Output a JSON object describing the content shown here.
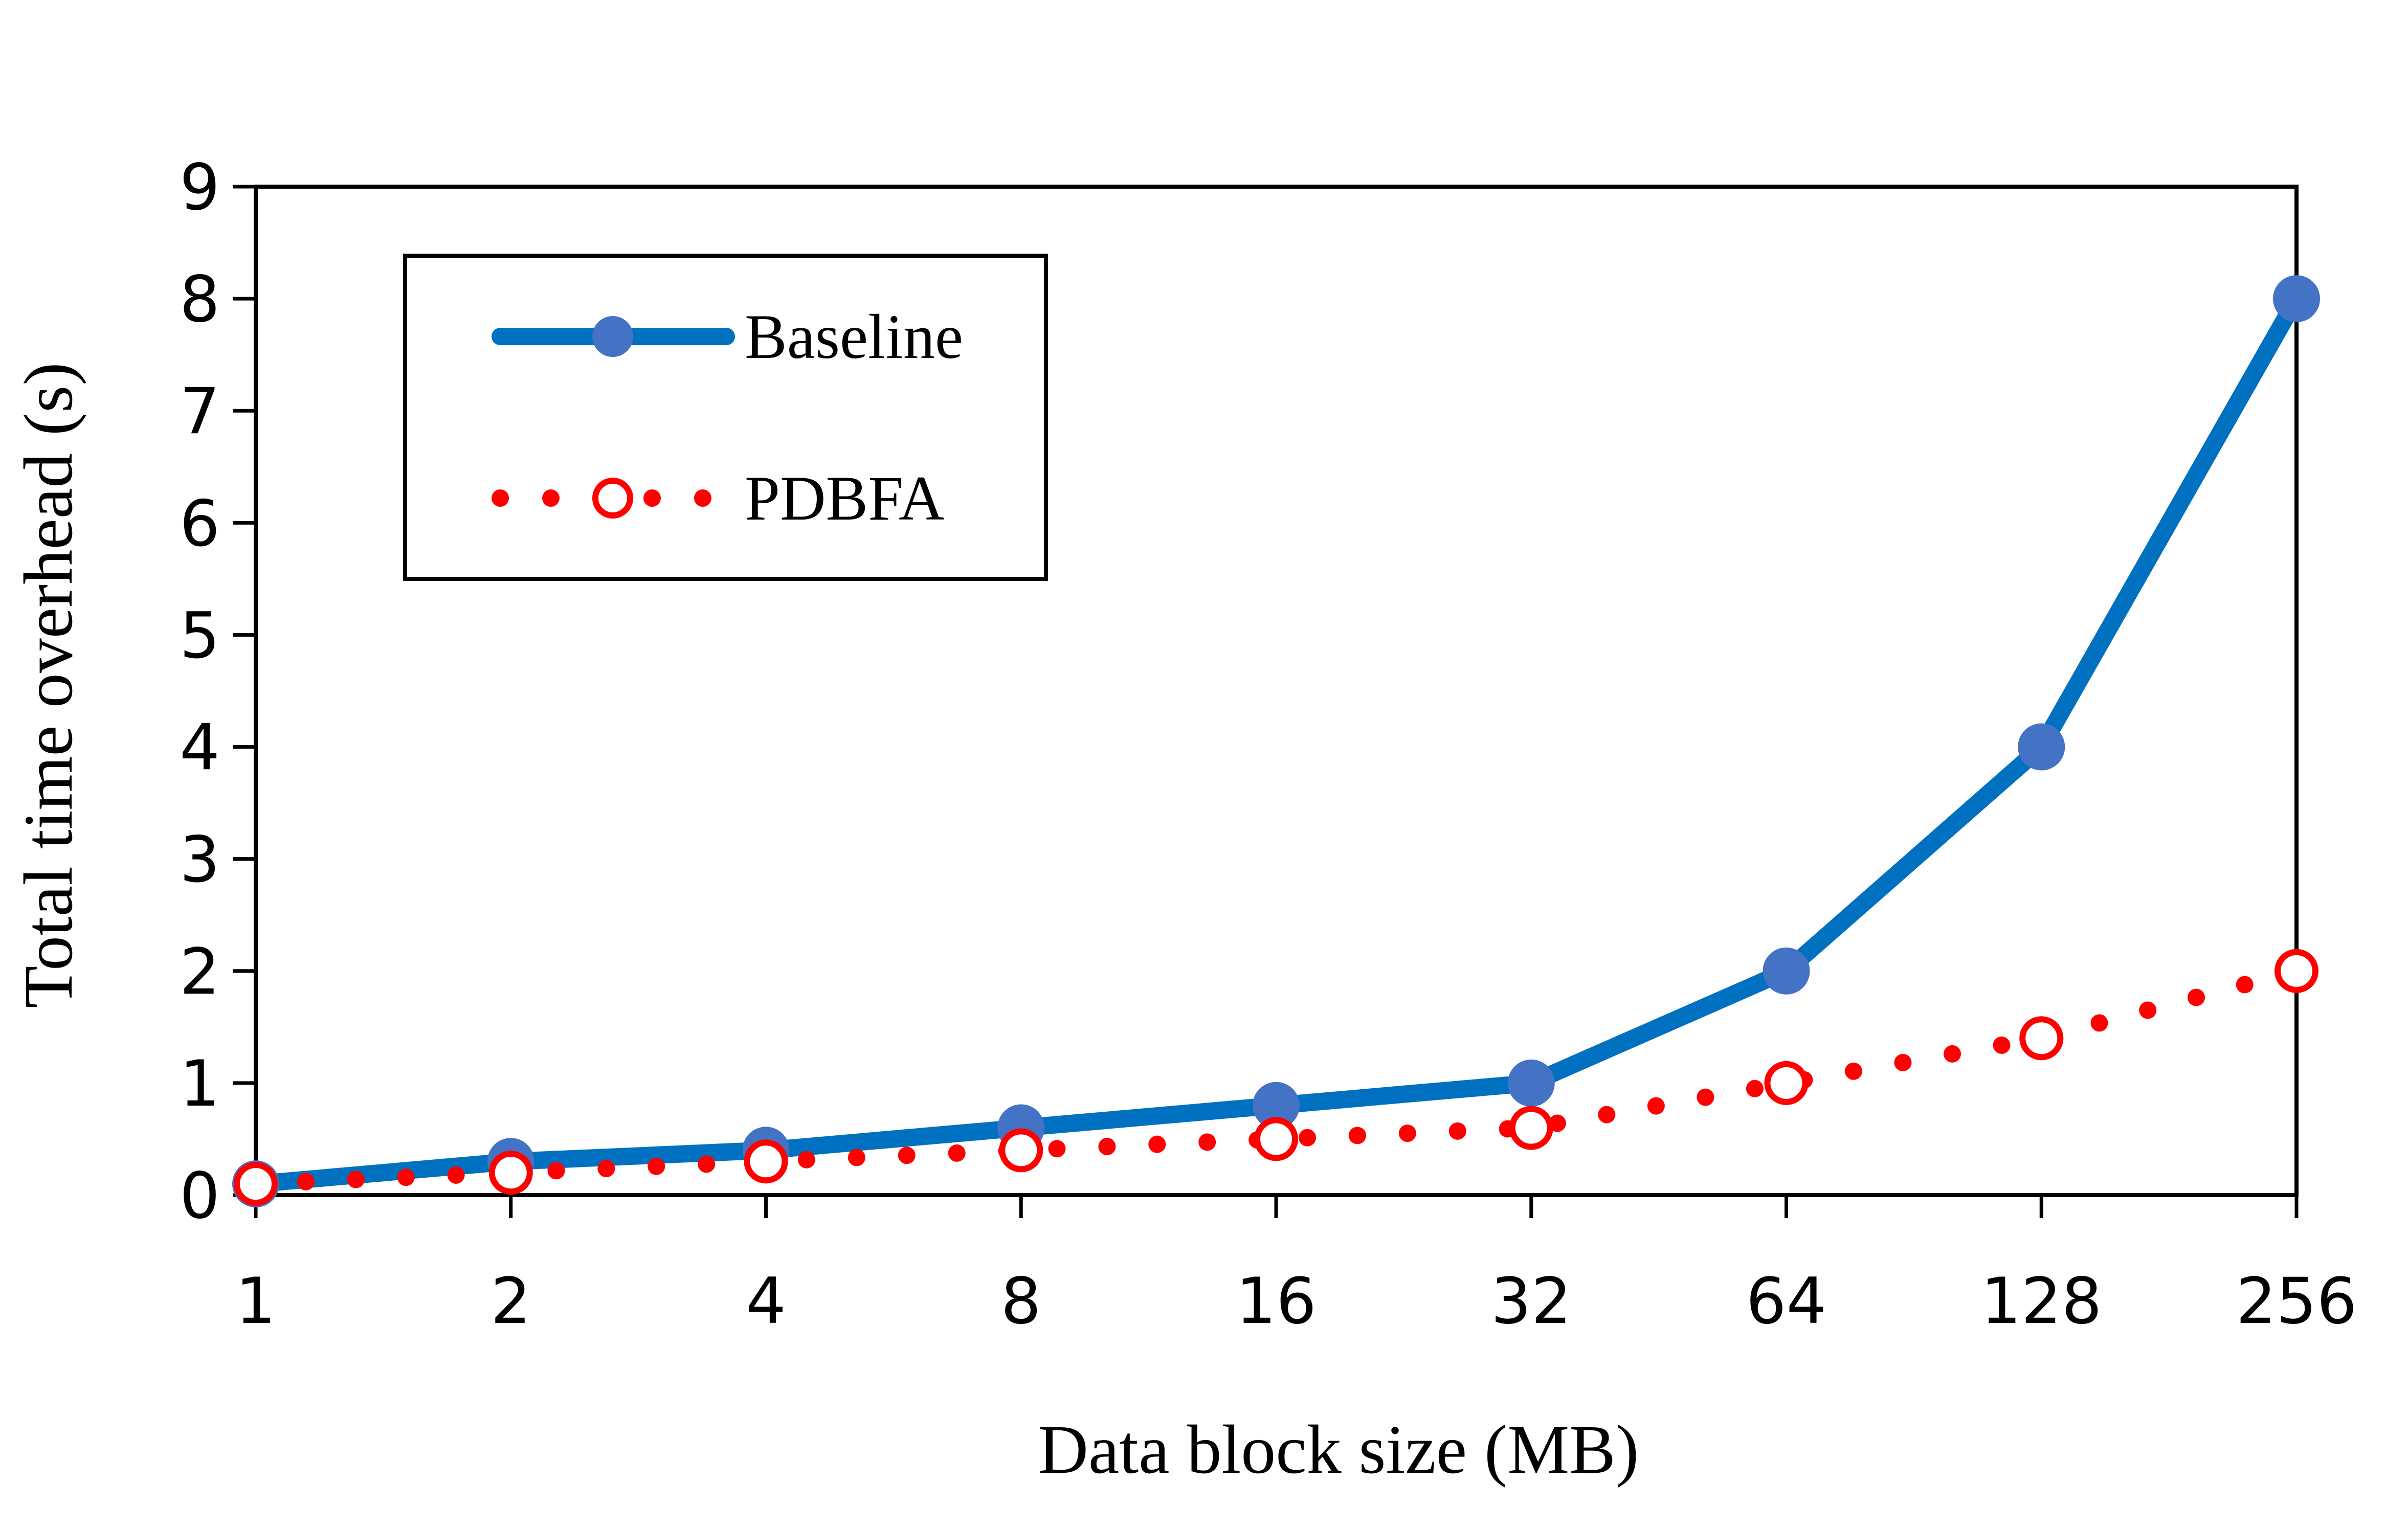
{
  "chart_data": {
    "type": "line",
    "title": "",
    "xlabel": "Data block size (MB)",
    "ylabel": "Total time overhead (s)",
    "categories": [
      "1",
      "2",
      "4",
      "8",
      "16",
      "32",
      "64",
      "128",
      "256"
    ],
    "ylim": [
      0,
      9
    ],
    "yticks": [
      "0",
      "1",
      "2",
      "3",
      "4",
      "5",
      "6",
      "7",
      "8",
      "9"
    ],
    "grid": false,
    "legend_position": "top-left",
    "series": [
      {
        "name": "Baseline",
        "values": [
          0.1,
          0.3,
          0.4,
          0.6,
          0.8,
          1.0,
          2.0,
          4.0,
          8.0
        ],
        "color": "#0070C0",
        "marker_color": "#4472C4",
        "line_style": "solid",
        "marker": "filled-circle"
      },
      {
        "name": "PDBFA",
        "values": [
          0.1,
          0.2,
          0.3,
          0.4,
          0.5,
          0.6,
          1.0,
          1.4,
          2.0
        ],
        "color": "#FF0000",
        "marker_color": "#FF0000",
        "line_style": "dotted",
        "marker": "open-circle"
      }
    ]
  }
}
